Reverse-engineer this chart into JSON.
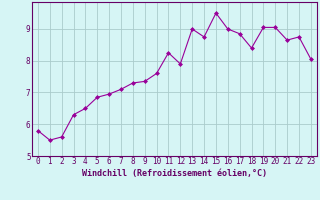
{
  "x": [
    0,
    1,
    2,
    3,
    4,
    5,
    6,
    7,
    8,
    9,
    10,
    11,
    12,
    13,
    14,
    15,
    16,
    17,
    18,
    19,
    20,
    21,
    22,
    23
  ],
  "y": [
    5.8,
    5.5,
    5.6,
    6.3,
    6.5,
    6.85,
    6.95,
    7.1,
    7.3,
    7.35,
    7.6,
    8.25,
    7.9,
    9.0,
    8.75,
    9.5,
    9.0,
    8.85,
    8.4,
    9.05,
    9.05,
    8.65,
    8.75,
    8.05
  ],
  "line_color": "#990099",
  "marker": "D",
  "marker_size": 2.0,
  "bg_color": "#d6f5f5",
  "grid_color": "#aacccc",
  "axis_color": "#660066",
  "xlabel": "Windchill (Refroidissement éolien,°C)",
  "xlabel_fontsize": 6.0,
  "tick_fontsize": 5.5,
  "ylabel_ticks": [
    5,
    6,
    7,
    8,
    9
  ],
  "xlim": [
    -0.5,
    23.5
  ],
  "ylim": [
    5.0,
    9.85
  ]
}
